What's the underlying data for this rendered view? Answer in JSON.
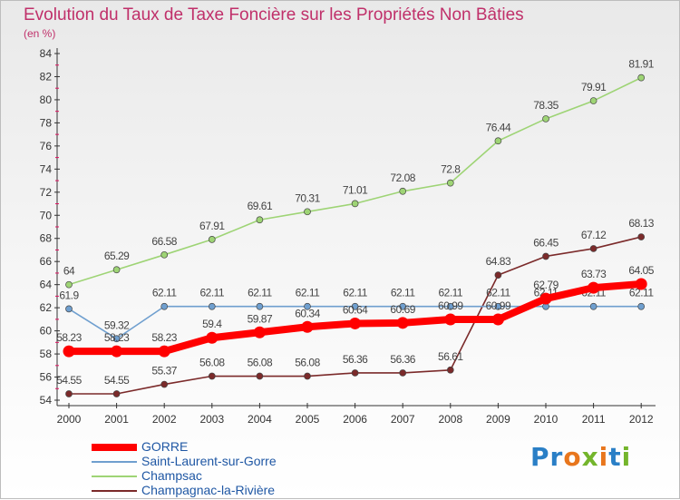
{
  "header": {
    "title": "Evolution du Taux de Taxe Foncière sur les Propriétés Non Bâties",
    "unit": "(en %)"
  },
  "logo": {
    "text": "Proxiti",
    "colors": [
      "#2a7fc6",
      "#e8761d",
      "#74b52c"
    ]
  },
  "chart_data": {
    "type": "line",
    "title": "Evolution du Taux de Taxe Foncière sur les Propriétés Non Bâties",
    "ylabel": "(en %)",
    "xlabel": "",
    "x": [
      "2000",
      "2001",
      "2002",
      "2003",
      "2004",
      "2005",
      "2006",
      "2007",
      "2008",
      "2009",
      "2010",
      "2011",
      "2012"
    ],
    "yticks": [
      "54",
      "56",
      "58",
      "60",
      "62",
      "64",
      "66",
      "68",
      "70",
      "72",
      "74",
      "76",
      "78",
      "80",
      "82",
      "84"
    ],
    "ylim": [
      54,
      84
    ],
    "grid": false,
    "legend_position": "bottom-left",
    "series": [
      {
        "name": "GORRE",
        "color": "#ff0000",
        "values": [
          58.23,
          58.23,
          58.23,
          59.4,
          59.87,
          60.34,
          60.64,
          60.69,
          60.99,
          60.99,
          62.79,
          63.73,
          64.05
        ],
        "labels": [
          "58.23",
          "58.23",
          "58.23",
          "59.4",
          "59.87",
          "60.34",
          "60.64",
          "60.69",
          "60.99",
          "60.99",
          "62.79",
          "63.73",
          "64.05"
        ]
      },
      {
        "name": "Saint-Laurent-sur-Gorre",
        "color": "#6f9fcf",
        "values": [
          61.9,
          59.32,
          62.11,
          62.11,
          62.11,
          62.11,
          62.11,
          62.11,
          62.11,
          62.11,
          62.11,
          62.11,
          62.11
        ],
        "labels": [
          "61.9",
          "59.32",
          "62.11",
          "62.11",
          "62.11",
          "62.11",
          "62.11",
          "62.11",
          "62.11",
          "62.11",
          "62.11",
          "62.11",
          "62.11"
        ]
      },
      {
        "name": "Champsac",
        "color": "#9ed475",
        "values": [
          64,
          65.29,
          66.58,
          67.91,
          69.61,
          70.31,
          71.01,
          72.08,
          72.8,
          76.44,
          78.35,
          79.91,
          81.91
        ],
        "labels": [
          "64",
          "65.29",
          "66.58",
          "67.91",
          "69.61",
          "70.31",
          "71.01",
          "72.08",
          "72.8",
          "76.44",
          "78.35",
          "79.91",
          "81.91"
        ]
      },
      {
        "name": "Champagnac-la-Rivière",
        "color": "#7b2a2a",
        "values": [
          54.55,
          54.55,
          55.37,
          56.08,
          56.08,
          56.08,
          56.36,
          56.36,
          56.61,
          64.83,
          66.45,
          67.12,
          68.13
        ],
        "labels": [
          "54.55",
          "54.55",
          "55.37",
          "56.08",
          "56.08",
          "56.08",
          "56.36",
          "56.36",
          "56.61",
          "64.83",
          "66.45",
          "67.12",
          "68.13"
        ]
      }
    ]
  }
}
